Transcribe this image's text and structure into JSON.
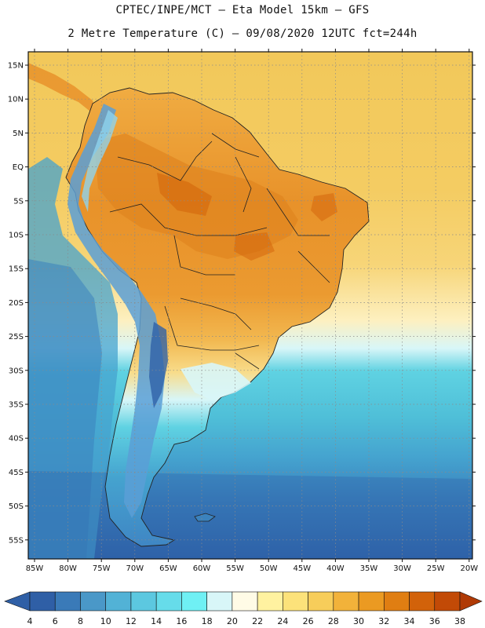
{
  "header": {
    "line1": "CPTEC/INPE/MCT –  Eta Model 15km – GFS",
    "line2": "2 Metre Temperature (C) – 09/08/2020 12UTC fct=244h"
  },
  "axes": {
    "lat_labels": [
      "15N",
      "10N",
      "5N",
      "EQ",
      "5S",
      "10S",
      "15S",
      "20S",
      "25S",
      "30S",
      "35S",
      "40S",
      "45S",
      "50S",
      "55S"
    ],
    "lon_labels": [
      "85W",
      "80W",
      "75W",
      "70W",
      "65W",
      "60W",
      "55W",
      "50W",
      "45W",
      "40W",
      "35W",
      "30W",
      "25W",
      "20W"
    ]
  },
  "colorbar": {
    "labels": [
      "4",
      "6",
      "8",
      "10",
      "12",
      "14",
      "16",
      "18",
      "20",
      "22",
      "24",
      "26",
      "28",
      "30",
      "32",
      "34",
      "36",
      "38"
    ],
    "colors": [
      "#2f5fa6",
      "#3a7ab8",
      "#4a98c8",
      "#52b2d6",
      "#5cc8e0",
      "#66dcea",
      "#6ff0f4",
      "#d8f6f8",
      "#fffbe6",
      "#fff2a0",
      "#fce27a",
      "#f7cd5a",
      "#f2b23a",
      "#eb9a22",
      "#e07e12",
      "#d2620a",
      "#c24a06",
      "#b03a05"
    ]
  },
  "field_colors": {
    "ocean_north": "#f2c85a",
    "ocean_north_light": "#f7d578",
    "subtropical": "#fdf0c0",
    "pale": "#d8f6f8",
    "cyan": "#5fd2e2",
    "cyan2": "#4fbfd8",
    "mid": "#45a3cf",
    "deep": "#3b82bd",
    "deepest": "#2f62a8",
    "land_hot": "#e8922a",
    "land_warm": "#f0ac42",
    "land_hotspot": "#d97a1e",
    "andes": "#5a9fd6",
    "andes_light": "#8fd3ee",
    "patagonia": "#3f86c4"
  }
}
